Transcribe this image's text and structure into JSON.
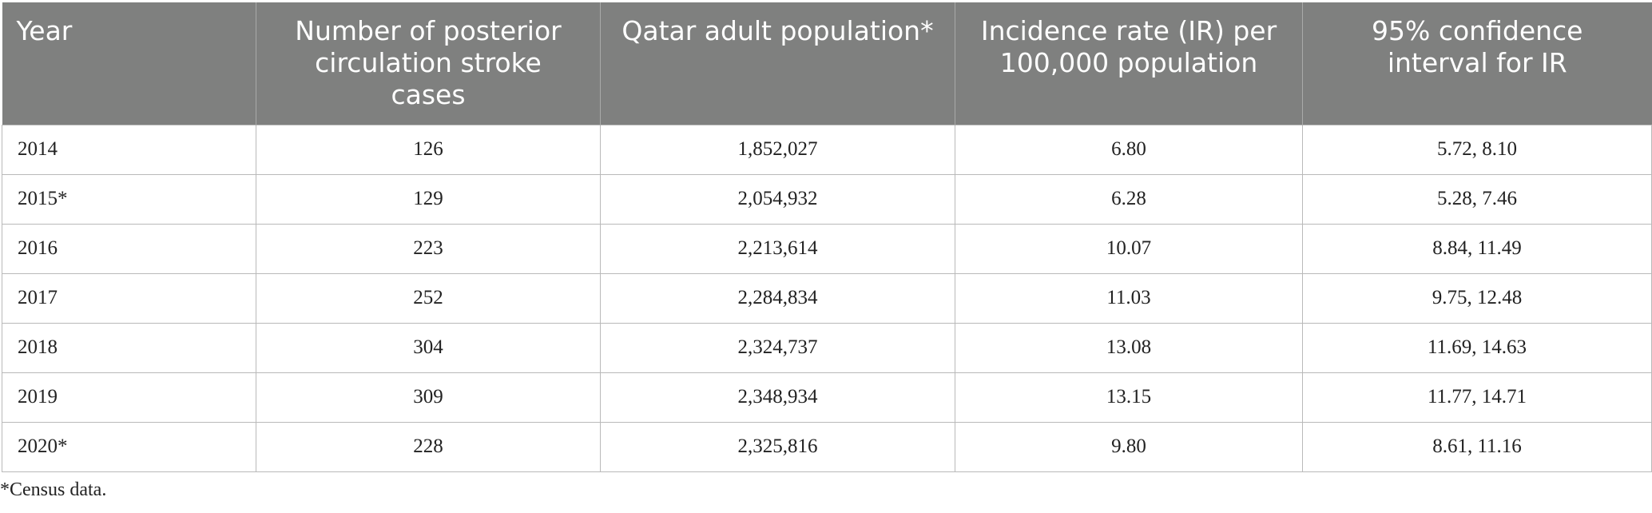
{
  "table": {
    "headers": [
      "Year",
      "Number of posterior circulation stroke cases",
      "Qatar adult population*",
      "Incidence rate (IR) per 100,000 population",
      "95% confidence interval for IR"
    ],
    "rows": [
      [
        "2014",
        "126",
        "1,852,027",
        "6.80",
        "5.72, 8.10"
      ],
      [
        "2015*",
        "129",
        "2,054,932",
        "6.28",
        "5.28, 7.46"
      ],
      [
        "2016",
        "223",
        "2,213,614",
        "10.07",
        "8.84, 11.49"
      ],
      [
        "2017",
        "252",
        "2,284,834",
        "11.03",
        "9.75, 12.48"
      ],
      [
        "2018",
        "304",
        "2,324,737",
        "13.08",
        "11.69, 14.63"
      ],
      [
        "2019",
        "309",
        "2,348,934",
        "13.15",
        "11.77, 14.71"
      ],
      [
        "2020*",
        "228",
        "2,325,816",
        "9.80",
        "8.61, 11.16"
      ]
    ]
  },
  "footnote": "*Census data.",
  "colors": {
    "header_bg": "#7f807f",
    "header_text": "#ffffff",
    "border": "#b9b9b9"
  }
}
